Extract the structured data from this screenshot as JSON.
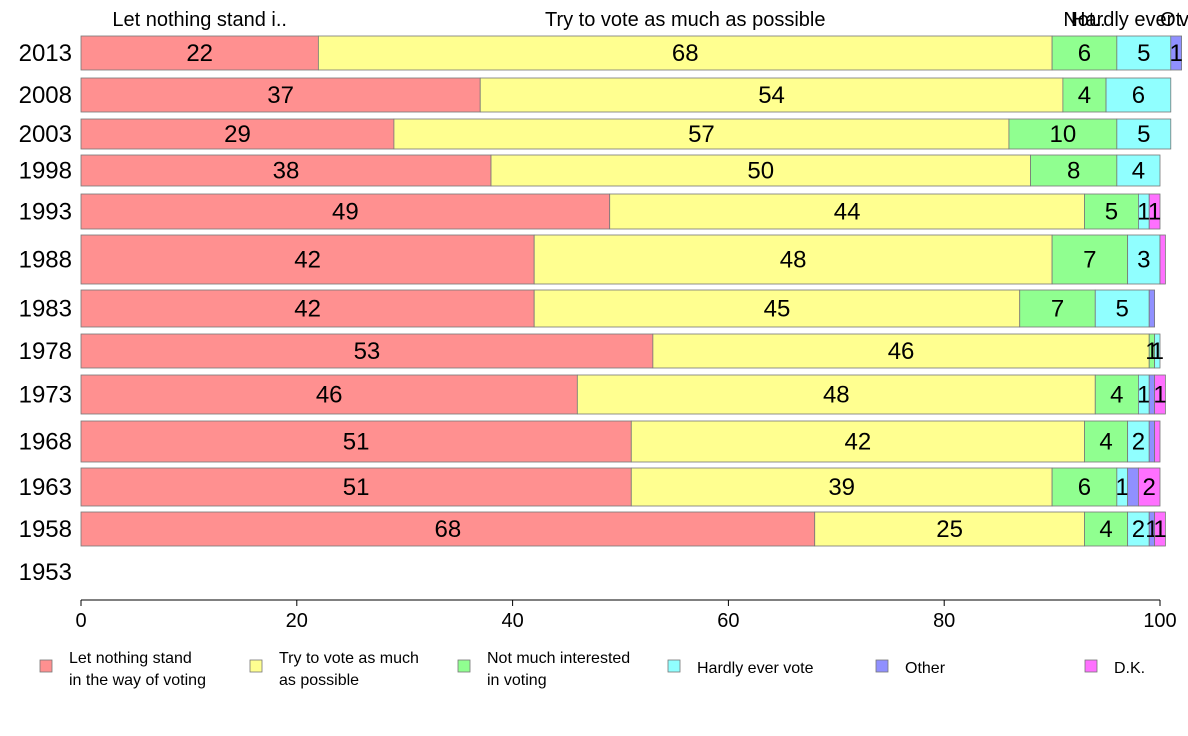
{
  "chart_data": {
    "type": "bar",
    "orientation": "horizontal",
    "stacked": true,
    "categories": [
      "2013",
      "2008",
      "2003",
      "1998",
      "1993",
      "1988",
      "1983",
      "1978",
      "1973",
      "1968",
      "1963",
      "1958",
      "1953"
    ],
    "series": [
      {
        "name": "Let nothing stand in the way of voting",
        "color": "#ff9090",
        "values": [
          22,
          37,
          29,
          38,
          49,
          42,
          42,
          53,
          46,
          51,
          51,
          68,
          null
        ]
      },
      {
        "name": "Try to vote as much as possible",
        "color": "#ffff90",
        "values": [
          68,
          54,
          57,
          50,
          44,
          48,
          45,
          46,
          48,
          42,
          39,
          25,
          null
        ]
      },
      {
        "name": "Not much interested in voting",
        "color": "#90ff90",
        "values": [
          6,
          4,
          10,
          8,
          5,
          7,
          7,
          0.5,
          4,
          4,
          6,
          4,
          null
        ]
      },
      {
        "name": "Hardly ever vote",
        "color": "#90ffff",
        "values": [
          5,
          6,
          5,
          4,
          1,
          3,
          5,
          0.5,
          1,
          2,
          1,
          2,
          null
        ]
      },
      {
        "name": "Other",
        "color": "#9090ff",
        "values": [
          1,
          0,
          0,
          0,
          0,
          0,
          0.5,
          0,
          0.5,
          0.5,
          1,
          0.5,
          null
        ]
      },
      {
        "name": "D.K.",
        "color": "#ff70ff",
        "values": [
          0,
          0,
          0,
          0,
          1,
          0.5,
          0,
          0,
          1,
          0.5,
          2,
          1,
          null
        ]
      }
    ],
    "data_labels": [
      [
        "22",
        "68",
        "6",
        "5",
        "1",
        ""
      ],
      [
        "37",
        "54",
        "4",
        "6",
        "",
        ""
      ],
      [
        "29",
        "57",
        "10",
        "5",
        "",
        ""
      ],
      [
        "38",
        "50",
        "8",
        "4",
        "",
        ""
      ],
      [
        "49",
        "44",
        "5",
        "1",
        "",
        "1"
      ],
      [
        "42",
        "48",
        "7",
        "3",
        "",
        ""
      ],
      [
        "42",
        "45",
        "7",
        "5",
        "",
        ""
      ],
      [
        "53",
        "46",
        "1",
        "1",
        "",
        ""
      ],
      [
        "46",
        "48",
        "4",
        "1",
        "",
        "1"
      ],
      [
        "51",
        "42",
        "4",
        "2",
        "",
        ""
      ],
      [
        "51",
        "39",
        "6",
        "1",
        "",
        "2"
      ],
      [
        "68",
        "25",
        "4",
        "2",
        "1",
        "1"
      ],
      [
        "",
        "",
        "",
        "",
        "",
        ""
      ]
    ],
    "top_labels": [
      "Let nothing stand i..",
      "Try to vote as much as possible",
      "Not..",
      "Hardly ever vote",
      "Ot..",
      ""
    ],
    "xlim": [
      0,
      100
    ],
    "xticks": [
      0,
      20,
      40,
      60,
      80,
      100
    ],
    "legend": {
      "placement": "bottom",
      "labels": [
        [
          "Let nothing stand",
          "in the way of voting"
        ],
        [
          "Try to vote as much",
          "as possible"
        ],
        [
          "Not much interested",
          "in voting"
        ],
        [
          "Hardly ever vote"
        ],
        [
          "Other"
        ],
        [
          "D.K."
        ]
      ]
    },
    "grid": false
  }
}
